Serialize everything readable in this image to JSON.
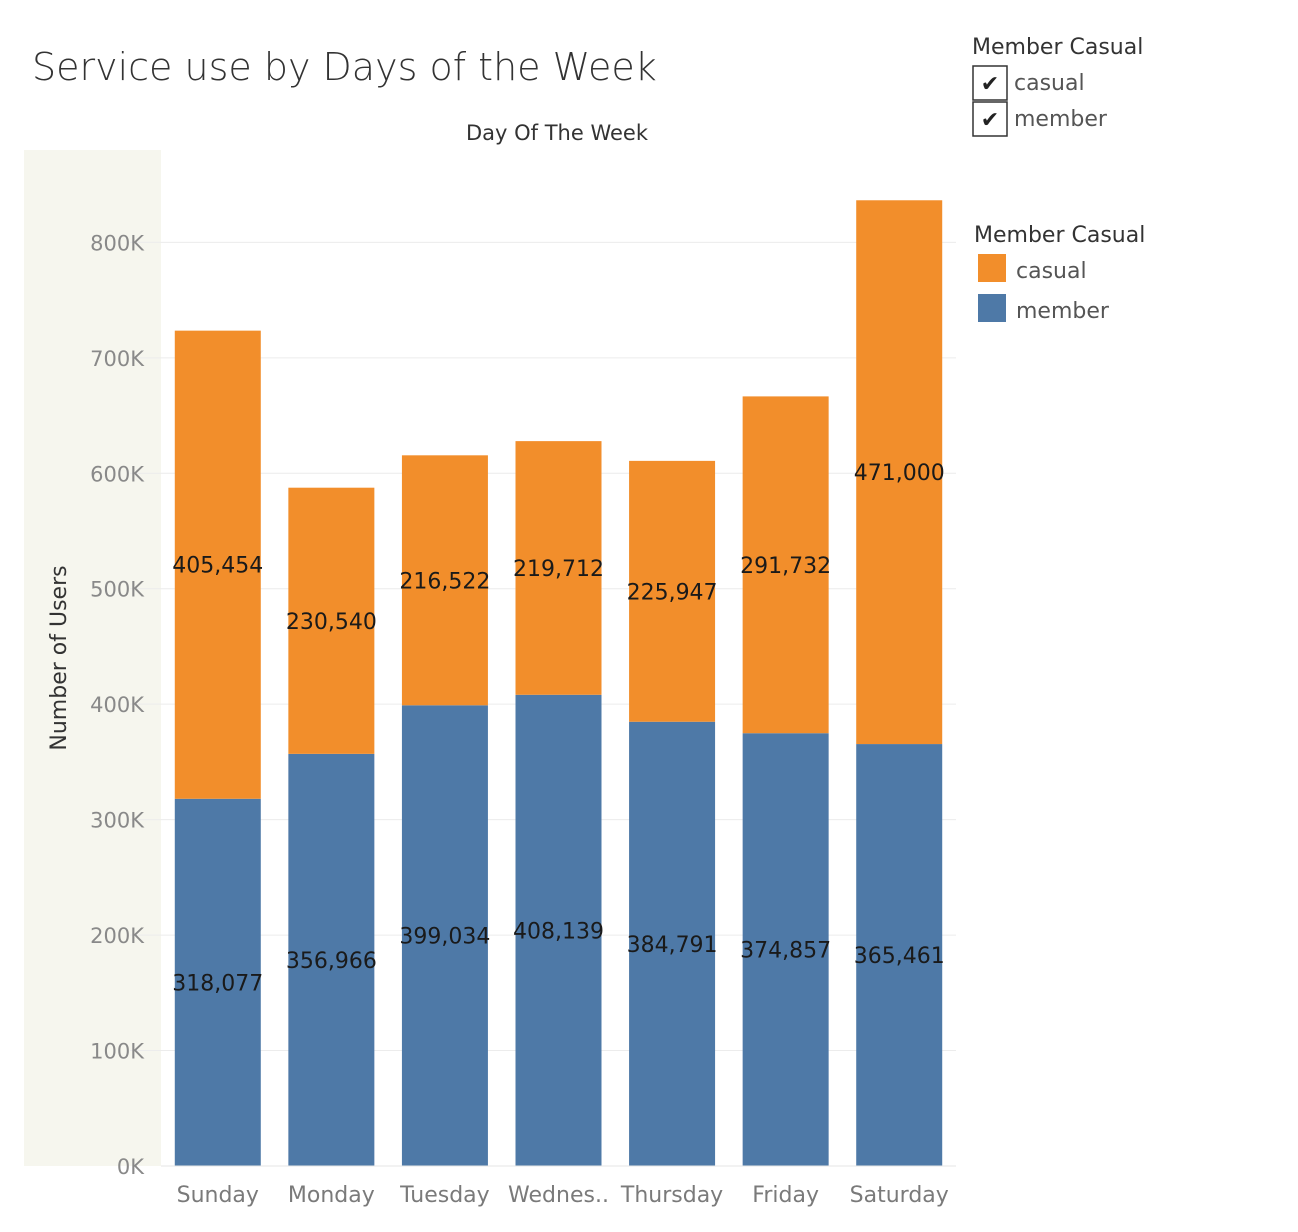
{
  "title": "Service use by Days of the Week",
  "filter": {
    "title": "Member Casual",
    "options": [
      {
        "label": "casual",
        "checked": true
      },
      {
        "label": "member",
        "checked": true
      }
    ]
  },
  "legend": {
    "title": "Member Casual",
    "items": [
      {
        "label": "casual",
        "color": "#f28e2b"
      },
      {
        "label": "member",
        "color": "#4e79a7"
      }
    ]
  },
  "colors": {
    "casual": "#f28e2b",
    "member": "#4e79a7",
    "axis_band": "#f6f6ee"
  },
  "chart_data": {
    "type": "bar",
    "stacked": true,
    "xlabel": "Day Of The Week",
    "ylabel": "Number of Users",
    "ylim": [
      0,
      880000
    ],
    "yticks": [
      0,
      100000,
      200000,
      300000,
      400000,
      500000,
      600000,
      700000,
      800000
    ],
    "ytick_labels": [
      "0K",
      "100K",
      "200K",
      "300K",
      "400K",
      "500K",
      "600K",
      "700K",
      "800K"
    ],
    "categories": [
      "Sunday",
      "Monday",
      "Tuesday",
      "Wednes..",
      "Thursday",
      "Friday",
      "Saturday"
    ],
    "series": [
      {
        "name": "member",
        "values": [
          318077,
          356966,
          399034,
          408139,
          384791,
          374857,
          365461
        ],
        "labels": [
          "318,077",
          "356,966",
          "399,034",
          "408,139",
          "384,791",
          "374,857",
          "365,461"
        ]
      },
      {
        "name": "casual",
        "values": [
          405454,
          230540,
          216522,
          219712,
          225947,
          291732,
          471000
        ],
        "labels": [
          "405,454",
          "230,540",
          "216,522",
          "219,712",
          "225,947",
          "291,732",
          "471,000"
        ]
      }
    ],
    "grid": true,
    "legend_position": "right"
  }
}
